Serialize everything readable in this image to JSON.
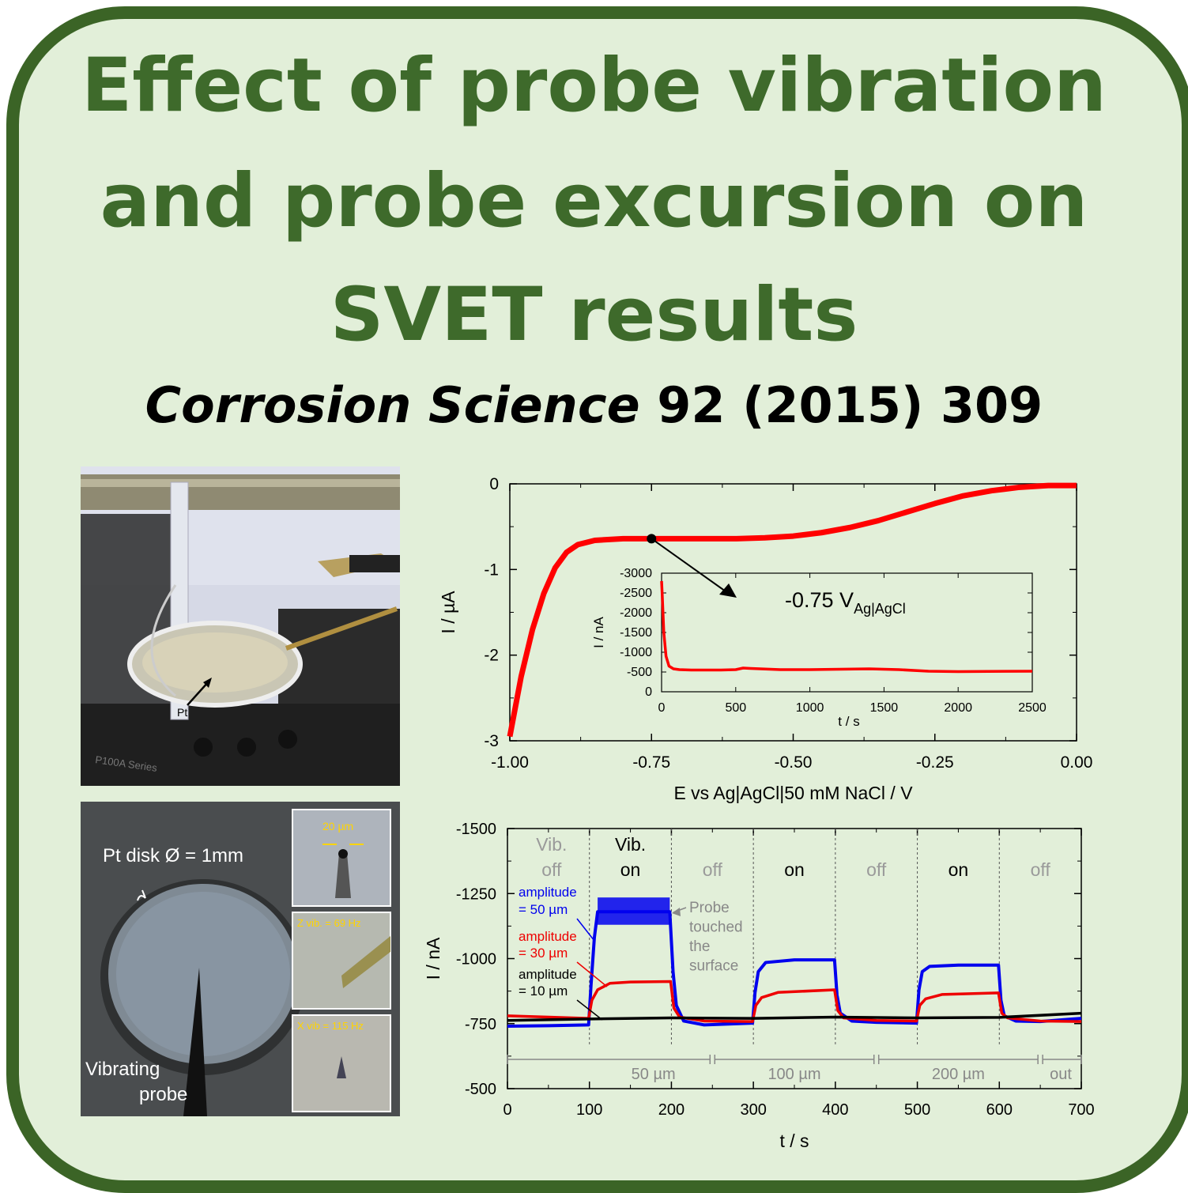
{
  "title": {
    "line1": "Effect of probe vibration",
    "line2": "and probe excursion on",
    "line3": "SVET results"
  },
  "citation": {
    "journal": "Corrosion Science",
    "ref": "92 (2015) 309"
  },
  "photo_top": {
    "pt_label": "Pt",
    "base_text": "P100A Series"
  },
  "photo_bottom": {
    "disk_label": "Pt disk Ø = 1mm",
    "probe_label_1": "Vibrating",
    "probe_label_2": "probe",
    "inset1_label": "20 µm",
    "inset2_label": "Z vib. = 69 Hz",
    "inset3_label": "X vib = 115 Hz"
  },
  "chart_data": [
    {
      "type": "line",
      "xlabel": "E vs Ag|AgCl|50 mM NaCl / V",
      "ylabel": "I / µA",
      "xlim": [
        -1.0,
        0.0
      ],
      "ylim": [
        -3,
        0
      ],
      "xticks": [
        "-1.00",
        "-0.75",
        "-0.50",
        "-0.25",
        "0.00"
      ],
      "yticks": [
        "0",
        "-1",
        "-2",
        "-3"
      ],
      "color": "#ff0000",
      "x": [
        -1.0,
        -0.98,
        -0.96,
        -0.94,
        -0.92,
        -0.9,
        -0.88,
        -0.85,
        -0.8,
        -0.75,
        -0.7,
        -0.6,
        -0.55,
        -0.5,
        -0.45,
        -0.4,
        -0.35,
        -0.3,
        -0.25,
        -0.2,
        -0.15,
        -0.1,
        -0.05,
        0.0
      ],
      "y": [
        -2.95,
        -2.25,
        -1.7,
        -1.28,
        -0.98,
        -0.8,
        -0.71,
        -0.66,
        -0.64,
        -0.64,
        -0.64,
        -0.64,
        -0.63,
        -0.61,
        -0.57,
        -0.51,
        -0.43,
        -0.33,
        -0.23,
        -0.14,
        -0.08,
        -0.04,
        -0.02,
        -0.02
      ],
      "marker": {
        "x": -0.75,
        "y": -0.64
      },
      "annotation": "-0.75 V",
      "annotation_sub": "Ag|AgCl",
      "inset": {
        "xlabel": "t / s",
        "ylabel": "I / nA",
        "xlim": [
          0,
          2500
        ],
        "ylim": [
          0,
          -3000
        ],
        "xticks": [
          "0",
          "500",
          "1000",
          "1500",
          "2000",
          "2500"
        ],
        "yticks": [
          "0",
          "-500",
          "-1000",
          "-1500",
          "-2000",
          "-2500",
          "-3000"
        ],
        "x": [
          0,
          5,
          15,
          30,
          50,
          80,
          120,
          200,
          300,
          400,
          500,
          550,
          600,
          800,
          1000,
          1200,
          1400,
          1600,
          1800,
          2000,
          2200,
          2500
        ],
        "y": [
          -2800,
          -2400,
          -1500,
          -900,
          -650,
          -580,
          -560,
          -550,
          -550,
          -550,
          -560,
          -600,
          -590,
          -560,
          -560,
          -570,
          -580,
          -560,
          -520,
          -510,
          -515,
          -520
        ]
      }
    },
    {
      "type": "line",
      "xlabel": "t / s",
      "ylabel": "I / nA",
      "xlim": [
        0,
        700
      ],
      "ylim": [
        -500,
        -1500
      ],
      "xticks": [
        "0",
        "100",
        "200",
        "300",
        "400",
        "500",
        "600",
        "700"
      ],
      "yticks": [
        "-1500",
        "-1250",
        "-1000",
        "-750",
        "-500"
      ],
      "phase_lines": [
        100,
        200,
        300,
        400,
        500,
        600
      ],
      "phases": [
        {
          "label": "Vib.",
          "label2": "off",
          "color": "#9a9a9a"
        },
        {
          "label": "Vib.",
          "label2": "on",
          "color": "#000000"
        },
        {
          "label": "",
          "label2": "off",
          "color": "#9a9a9a"
        },
        {
          "label": "",
          "label2": "on",
          "color": "#000000"
        },
        {
          "label": "",
          "label2": "off",
          "color": "#9a9a9a"
        },
        {
          "label": "",
          "label2": "on",
          "color": "#000000"
        },
        {
          "label": "",
          "label2": "off",
          "color": "#9a9a9a"
        }
      ],
      "excursion": [
        {
          "label": "50 µm",
          "from": 0,
          "to": 250
        },
        {
          "label": "100 µm",
          "from": 250,
          "to": 450
        },
        {
          "label": "200 µm",
          "from": 450,
          "to": 650
        },
        {
          "label": "out",
          "from": 650,
          "to": 700
        }
      ],
      "series": [
        {
          "label1": "amplitude",
          "label2": "= 50 µm",
          "color": "#0000ee",
          "x": [
            0,
            50,
            99,
            102,
            106,
            110,
            150,
            198,
            202,
            206,
            215,
            240,
            299,
            302,
            306,
            315,
            350,
            399,
            402,
            406,
            420,
            450,
            499,
            502,
            506,
            515,
            550,
            599,
            602,
            606,
            620,
            650,
            690,
            700
          ],
          "y": [
            -740,
            -742,
            -745,
            -900,
            -1080,
            -1180,
            -1180,
            -1180,
            -950,
            -820,
            -760,
            -745,
            -752,
            -870,
            -950,
            -985,
            -995,
            -995,
            -860,
            -790,
            -760,
            -755,
            -752,
            -880,
            -950,
            -970,
            -975,
            -975,
            -840,
            -780,
            -760,
            -758,
            -768,
            -770
          ]
        },
        {
          "label1": "amplitude",
          "label2": "= 30 µm",
          "color": "#ee0000",
          "x": [
            0,
            50,
            99,
            103,
            110,
            125,
            150,
            199,
            203,
            210,
            240,
            299,
            303,
            310,
            330,
            399,
            403,
            410,
            450,
            499,
            503,
            510,
            530,
            599,
            603,
            610,
            650,
            700
          ],
          "y": [
            -780,
            -775,
            -770,
            -840,
            -880,
            -905,
            -910,
            -912,
            -810,
            -775,
            -760,
            -758,
            -820,
            -850,
            -870,
            -880,
            -800,
            -772,
            -762,
            -760,
            -820,
            -845,
            -862,
            -868,
            -790,
            -772,
            -760,
            -758
          ]
        },
        {
          "label1": "amplitude",
          "label2": "= 10 µm",
          "color": "#000000",
          "x": [
            0,
            100,
            200,
            300,
            400,
            500,
            600,
            700
          ],
          "y": [
            -762,
            -768,
            -772,
            -770,
            -775,
            -772,
            -774,
            -790
          ]
        }
      ],
      "annotation": [
        "Probe",
        "touched",
        "the",
        "surface"
      ]
    }
  ]
}
